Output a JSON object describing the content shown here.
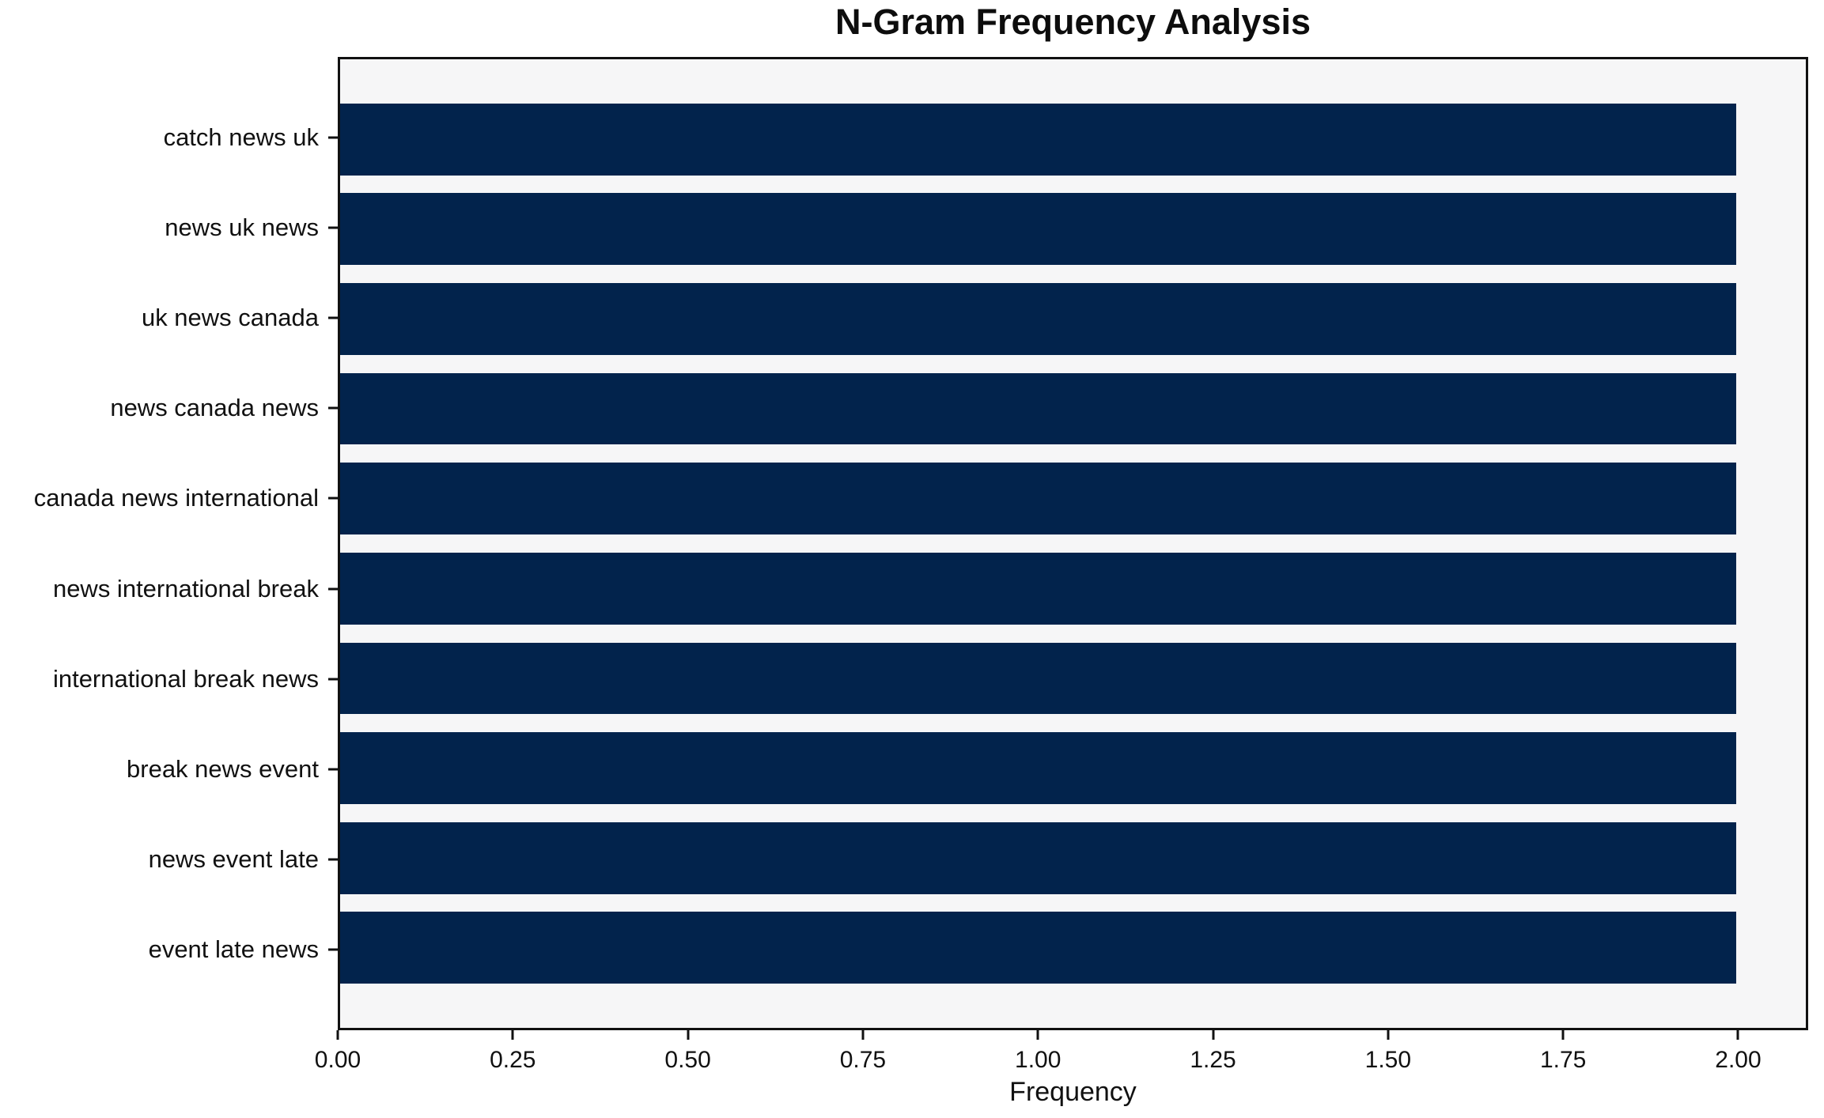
{
  "title": "N-Gram Frequency Analysis",
  "chart_data": {
    "type": "bar",
    "orientation": "horizontal",
    "title": "N-Gram Frequency Analysis",
    "xlabel": "Frequency",
    "ylabel": "",
    "categories": [
      "catch news uk",
      "news uk news",
      "uk news canada",
      "news canada news",
      "canada news international",
      "news international break",
      "international break news",
      "break news event",
      "news event late",
      "event late news"
    ],
    "values": [
      2,
      2,
      2,
      2,
      2,
      2,
      2,
      2,
      2,
      2
    ],
    "xlim": [
      0,
      2.1
    ],
    "xtick_labels": [
      "0.00",
      "0.25",
      "0.50",
      "0.75",
      "1.00",
      "1.25",
      "1.50",
      "1.75",
      "2.00"
    ],
    "xtick_values": [
      0,
      0.25,
      0.5,
      0.75,
      1,
      1.25,
      1.5,
      1.75,
      2
    ],
    "grid": false,
    "legend": null,
    "colors": {
      "bar": "#02234c",
      "plot_background": "#f6f6f7",
      "figure_background": "#ffffff",
      "spine": "#111111",
      "text": "#111111"
    }
  }
}
